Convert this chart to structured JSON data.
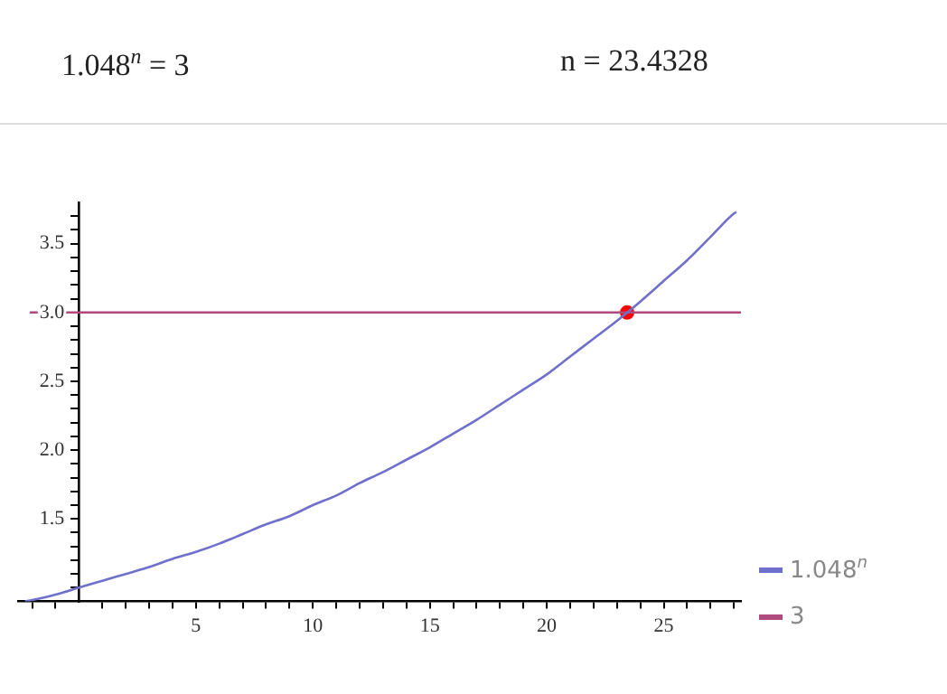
{
  "chart_data": {
    "type": "line",
    "title": "1.048$^{n}$ = 3",
    "annotations": [
      "n = 23.4328"
    ],
    "xlim": [
      -2.6,
      28.3
    ],
    "ylim": [
      0.9,
      3.8
    ],
    "xticks": [
      {
        "value": -2,
        "label": null
      },
      {
        "value": -1,
        "label": null
      },
      {
        "value": 1,
        "label": null
      },
      {
        "value": 2,
        "label": null
      },
      {
        "value": 3,
        "label": null
      },
      {
        "value": 4,
        "label": null
      },
      5,
      {
        "value": 6,
        "label": null
      },
      {
        "value": 7,
        "label": null
      },
      {
        "value": 8,
        "label": null
      },
      {
        "value": 9,
        "label": null
      },
      10,
      {
        "value": 11,
        "label": null
      },
      {
        "value": 12,
        "label": null
      },
      {
        "value": 13,
        "label": null
      },
      {
        "value": 14,
        "label": null
      },
      15,
      {
        "value": 16,
        "label": null
      },
      {
        "value": 17,
        "label": null
      },
      {
        "value": 18,
        "label": null
      },
      {
        "value": 19,
        "label": null
      },
      20,
      {
        "value": 21,
        "label": null
      },
      {
        "value": 22,
        "label": null
      },
      {
        "value": 23,
        "label": null
      },
      {
        "value": 24,
        "label": null
      },
      25,
      {
        "value": 26,
        "label": null
      },
      {
        "value": 27,
        "label": null
      },
      {
        "value": 28,
        "label": null
      }
    ],
    "yticks": [
      {
        "value": 1.0,
        "label": null
      },
      {
        "value": 1.1,
        "label": null
      },
      {
        "value": 1.2,
        "label": null
      },
      {
        "value": 1.3,
        "label": null
      },
      {
        "value": 1.4,
        "label": null
      },
      1.5,
      {
        "value": 1.6,
        "label": null
      },
      {
        "value": 1.7,
        "label": null
      },
      {
        "value": 1.8,
        "label": null
      },
      {
        "value": 1.9,
        "label": null
      },
      {
        "value": 2.0,
        "label": "2.0"
      },
      {
        "value": 2.1,
        "label": null
      },
      {
        "value": 2.2,
        "label": null
      },
      {
        "value": 2.3,
        "label": null
      },
      {
        "value": 2.4,
        "label": null
      },
      2.5,
      {
        "value": 2.6,
        "label": null
      },
      {
        "value": 2.7,
        "label": null
      },
      {
        "value": 2.8,
        "label": null
      },
      {
        "value": 2.9,
        "label": null
      },
      {
        "value": 3.0,
        "label": "3.0"
      },
      {
        "value": 3.1,
        "label": null
      },
      {
        "value": 3.2,
        "label": null
      },
      {
        "value": 3.3,
        "label": null
      },
      {
        "value": 3.4,
        "label": null
      },
      3.5,
      {
        "value": 3.6,
        "label": null
      },
      {
        "value": 3.7,
        "label": null
      }
    ],
    "grid": false,
    "legend": "bottom right",
    "marker": "none",
    "series": [
      {
        "name": "1.048$^{n}$",
        "color": "#6f70cc",
        "x": [
          -2.3,
          -2,
          -1,
          0,
          1,
          2,
          3,
          4,
          5,
          6,
          7,
          8,
          9,
          10,
          11,
          12,
          13,
          14,
          15,
          16,
          17,
          18,
          19,
          20,
          21,
          22,
          23,
          24,
          25,
          26,
          27,
          28,
          28.1
        ],
        "values": [
          0.9,
          0.91,
          0.95,
          1.0,
          1.05,
          1.1,
          1.15,
          1.21,
          1.26,
          1.32,
          1.39,
          1.46,
          1.52,
          1.6,
          1.67,
          1.76,
          1.84,
          1.93,
          2.02,
          2.12,
          2.22,
          2.33,
          2.44,
          2.55,
          2.68,
          2.81,
          2.94,
          3.08,
          3.23,
          3.38,
          3.55,
          3.72,
          3.73
        ]
      },
      {
        "name": "3",
        "color": "#b04a7c",
        "x": [
          -2.1,
          28.3
        ],
        "values": [
          3,
          3
        ]
      },
      {
        "type": "scatter",
        "color": "#ff0000",
        "marker": "circle",
        "x": [
          23.4328
        ],
        "values": [
          3
        ]
      }
    ]
  }
}
